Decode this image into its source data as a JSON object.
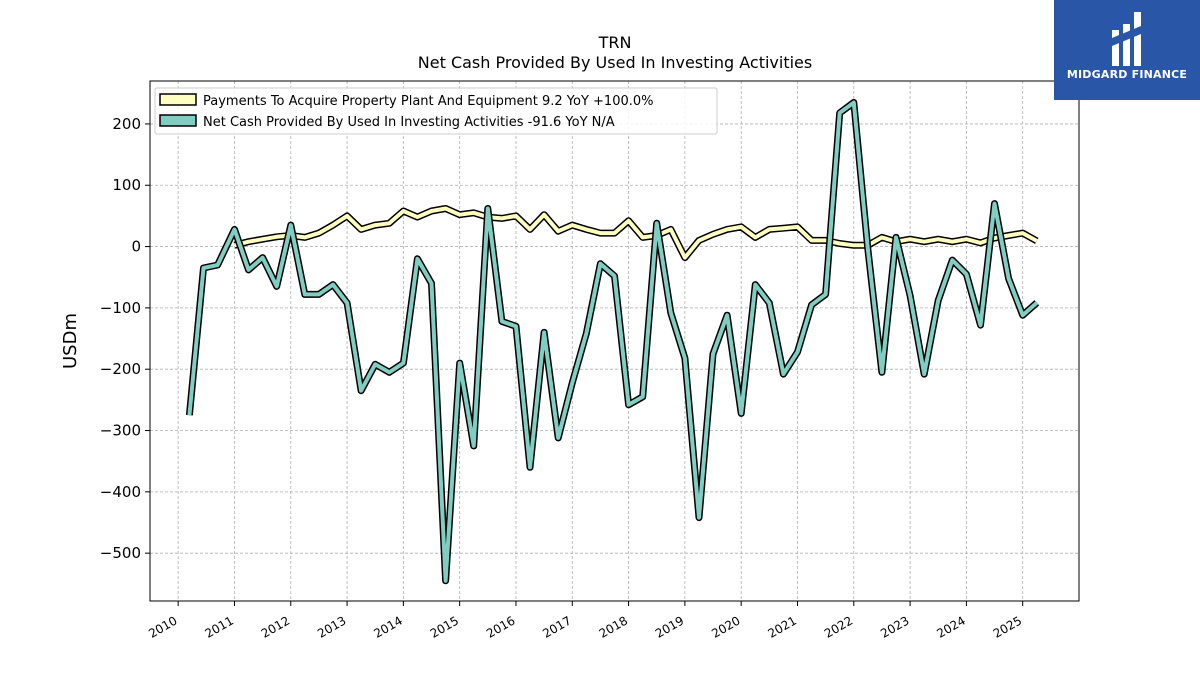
{
  "logo": {
    "text": "MIDGARD FINANCE",
    "bg_color": "#2a56a8"
  },
  "chart_data": {
    "type": "line",
    "title": "TRN",
    "subtitle": "Net Cash Provided By Used In Investing Activities",
    "ylabel": "USDm",
    "xlabel": "",
    "ylim": [
      -578,
      270
    ],
    "xlim": [
      2009.5,
      2026.0
    ],
    "grid": true,
    "legend_position": "top-left",
    "x_ticks": [
      2010,
      2011,
      2012,
      2013,
      2014,
      2015,
      2016,
      2017,
      2018,
      2019,
      2020,
      2021,
      2022,
      2023,
      2024,
      2025
    ],
    "x_tick_labels": [
      "2010",
      "2011",
      "2012",
      "2013",
      "2014",
      "2015",
      "2016",
      "2017",
      "2018",
      "2019",
      "2020",
      "2021",
      "2022",
      "2023",
      "2024",
      "2025"
    ],
    "y_ticks": [
      -500,
      -400,
      -300,
      -200,
      -100,
      0,
      100,
      200
    ],
    "y_tick_labels": [
      "−500",
      "−400",
      "−300",
      "−200",
      "−100",
      "0",
      "100",
      "200"
    ],
    "series": [
      {
        "name": "Payments To Acquire Property Plant And Equipment  9.2 YoY +100.0%",
        "color": "#ffffbf",
        "x": [
          2011.0,
          2011.25,
          2011.5,
          2011.75,
          2012.0,
          2012.25,
          2012.5,
          2012.75,
          2013.0,
          2013.25,
          2013.5,
          2013.75,
          2014.0,
          2014.25,
          2014.5,
          2014.75,
          2015.0,
          2015.25,
          2015.5,
          2015.75,
          2016.0,
          2016.25,
          2016.5,
          2016.75,
          2017.0,
          2017.25,
          2017.5,
          2017.75,
          2018.0,
          2018.25,
          2018.5,
          2018.75,
          2019.0,
          2019.25,
          2019.5,
          2019.75,
          2020.0,
          2020.25,
          2020.5,
          2020.75,
          2021.0,
          2021.25,
          2021.5,
          2021.75,
          2022.0,
          2022.25,
          2022.5,
          2022.75,
          2023.0,
          2023.25,
          2023.5,
          2023.75,
          2024.0,
          2024.25,
          2024.5,
          2024.75,
          2025.0,
          2025.25
        ],
        "values": [
          2,
          8,
          12,
          16,
          18,
          15,
          22,
          35,
          50,
          28,
          35,
          38,
          58,
          48,
          58,
          62,
          52,
          55,
          48,
          46,
          50,
          28,
          52,
          25,
          35,
          28,
          22,
          22,
          42,
          15,
          18,
          28,
          -18,
          10,
          20,
          28,
          32,
          15,
          28,
          30,
          32,
          10,
          10,
          5,
          2,
          2,
          15,
          8,
          12,
          8,
          12,
          8,
          12,
          6,
          14,
          18,
          22,
          9.2
        ]
      },
      {
        "name": "Net Cash Provided By Used In Investing Activities  -91.6 YoY N/A",
        "color": "#80cdc1",
        "x": [
          2010.2,
          2010.45,
          2010.7,
          2011.0,
          2011.25,
          2011.5,
          2011.75,
          2012.0,
          2012.25,
          2012.5,
          2012.75,
          2013.0,
          2013.25,
          2013.5,
          2013.75,
          2014.0,
          2014.25,
          2014.5,
          2014.75,
          2015.0,
          2015.25,
          2015.5,
          2015.75,
          2016.0,
          2016.25,
          2016.5,
          2016.75,
          2017.0,
          2017.25,
          2017.5,
          2017.75,
          2018.0,
          2018.25,
          2018.5,
          2018.75,
          2019.0,
          2019.25,
          2019.5,
          2019.75,
          2020.0,
          2020.25,
          2020.5,
          2020.75,
          2021.0,
          2021.25,
          2021.5,
          2021.75,
          2022.0,
          2022.25,
          2022.5,
          2022.75,
          2023.0,
          2023.25,
          2023.5,
          2023.75,
          2024.0,
          2024.25,
          2024.5,
          2024.75,
          2025.0,
          2025.25
        ],
        "values": [
          -275,
          -35,
          -30,
          28,
          -38,
          -18,
          -65,
          35,
          -78,
          -78,
          -62,
          -92,
          -235,
          -192,
          -205,
          -190,
          -20,
          -60,
          -545,
          -190,
          -325,
          62,
          -122,
          -130,
          -360,
          -140,
          -312,
          -222,
          -142,
          -28,
          -48,
          -258,
          -245,
          38,
          -108,
          -182,
          -442,
          -175,
          -112,
          -272,
          -62,
          -92,
          -208,
          -172,
          -95,
          -78,
          218,
          235,
          -5,
          -205,
          15,
          -80,
          -208,
          -88,
          -22,
          -45,
          -128,
          70,
          -52,
          -112,
          -91.6
        ]
      }
    ]
  }
}
